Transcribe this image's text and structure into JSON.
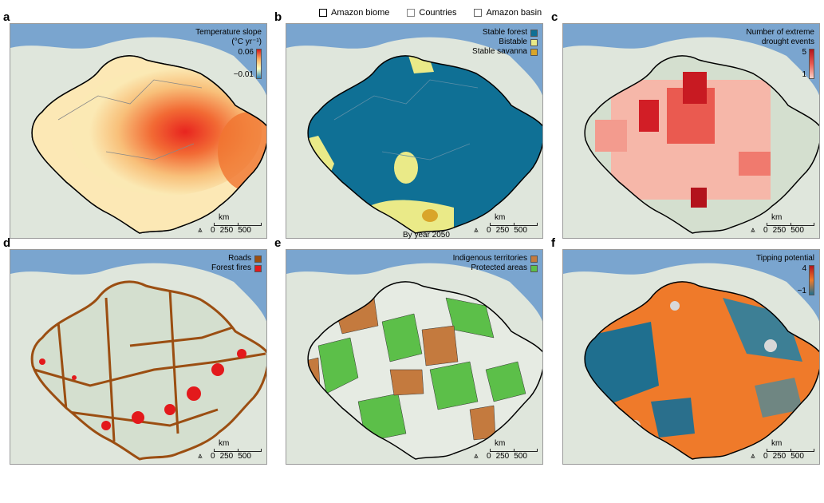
{
  "top_legend": [
    {
      "label": "Amazon biome",
      "border": "#000000",
      "fill": "#ffffff"
    },
    {
      "label": "Countries",
      "border": "#888888",
      "fill": "#ffffff"
    },
    {
      "label": "Amazon basin",
      "border": "#666666",
      "fill": "#ffffff"
    }
  ],
  "panels": {
    "a": {
      "label": "a",
      "legend_title": "Temperature slope (°C yr⁻¹)",
      "cbar_max": "0.06",
      "cbar_min": "−0.01"
    },
    "b": {
      "label": "b",
      "items": [
        {
          "label": "Stable forest",
          "color": "#0f7095"
        },
        {
          "label": "Bistable",
          "color": "#eaea88"
        },
        {
          "label": "Stable savanna",
          "color": "#d9a52a"
        }
      ],
      "caption": "By year 2050"
    },
    "c": {
      "label": "c",
      "legend_title": "Number of extreme drought events",
      "cbar_max": "5",
      "cbar_min": "1"
    },
    "d": {
      "label": "d",
      "items": [
        {
          "label": "Roads",
          "color": "#9b4e12"
        },
        {
          "label": "Forest fires",
          "color": "#e3191c"
        }
      ]
    },
    "e": {
      "label": "e",
      "items": [
        {
          "label": "Indigenous territories",
          "color": "#c47a3e"
        },
        {
          "label": "Protected areas",
          "color": "#5cbf49"
        }
      ]
    },
    "f": {
      "label": "f",
      "legend_title": "Tipping potential",
      "cbar_max": "4",
      "cbar_min": "−1"
    }
  },
  "scale": {
    "unit": "km",
    "ticks": [
      "0",
      "250",
      "500"
    ]
  }
}
